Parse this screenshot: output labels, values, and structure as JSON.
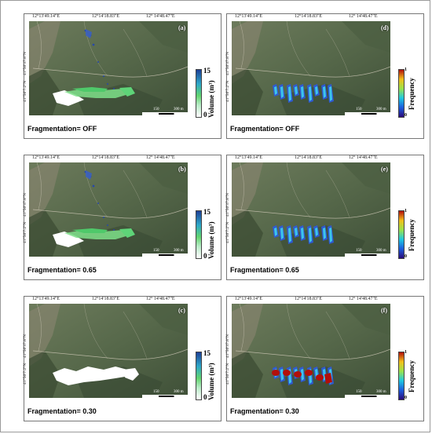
{
  "coords": {
    "x_ticks": [
      "12°13'49.14\"E",
      "12°14'18.83\"E",
      "12° 14'48.47\"E"
    ],
    "y_ticks": [
      "41°50'37.8\"N",
      "41°50'7.2\"N"
    ]
  },
  "scale_labels": [
    "150",
    "300 m"
  ],
  "panels": [
    {
      "label": "(a)",
      "caption": "Fragmentation=  OFF",
      "legend": "volume",
      "cb_max": "15",
      "cb_min": "0",
      "cb_title": "Volume (m³)"
    },
    {
      "label": "(b)",
      "caption": "Fragmentation=  0.65",
      "legend": "volume",
      "cb_max": "15",
      "cb_min": "0",
      "cb_title": "Volume (m³)"
    },
    {
      "label": "(c)",
      "caption": "Fragmentation= 0.30",
      "legend": "volume",
      "cb_max": "15",
      "cb_min": "0",
      "cb_title": "Volume (m³)"
    },
    {
      "label": "(d)",
      "caption": "Fragmentation=  OFF",
      "legend": "frequency",
      "cb_max": "1",
      "cb_min": "0",
      "cb_title": "Frequency"
    },
    {
      "label": "(e)",
      "caption": "Fragmentation=  0.65",
      "legend": "frequency",
      "cb_max": "1",
      "cb_min": "0",
      "cb_title": "Frequency"
    },
    {
      "label": "(f)",
      "caption": "Fragmentation= 0.30",
      "legend": "frequency",
      "cb_max": "1",
      "cb_min": "0",
      "cb_title": "Frequency"
    }
  ],
  "colors": {
    "terrain": "#58674a",
    "volume_low": "#ffffff",
    "volume_mid": "#62d46e",
    "volume_high": "#1c3f97",
    "freq_low": "#2a0a7a",
    "freq_high": "#b20f0a"
  }
}
